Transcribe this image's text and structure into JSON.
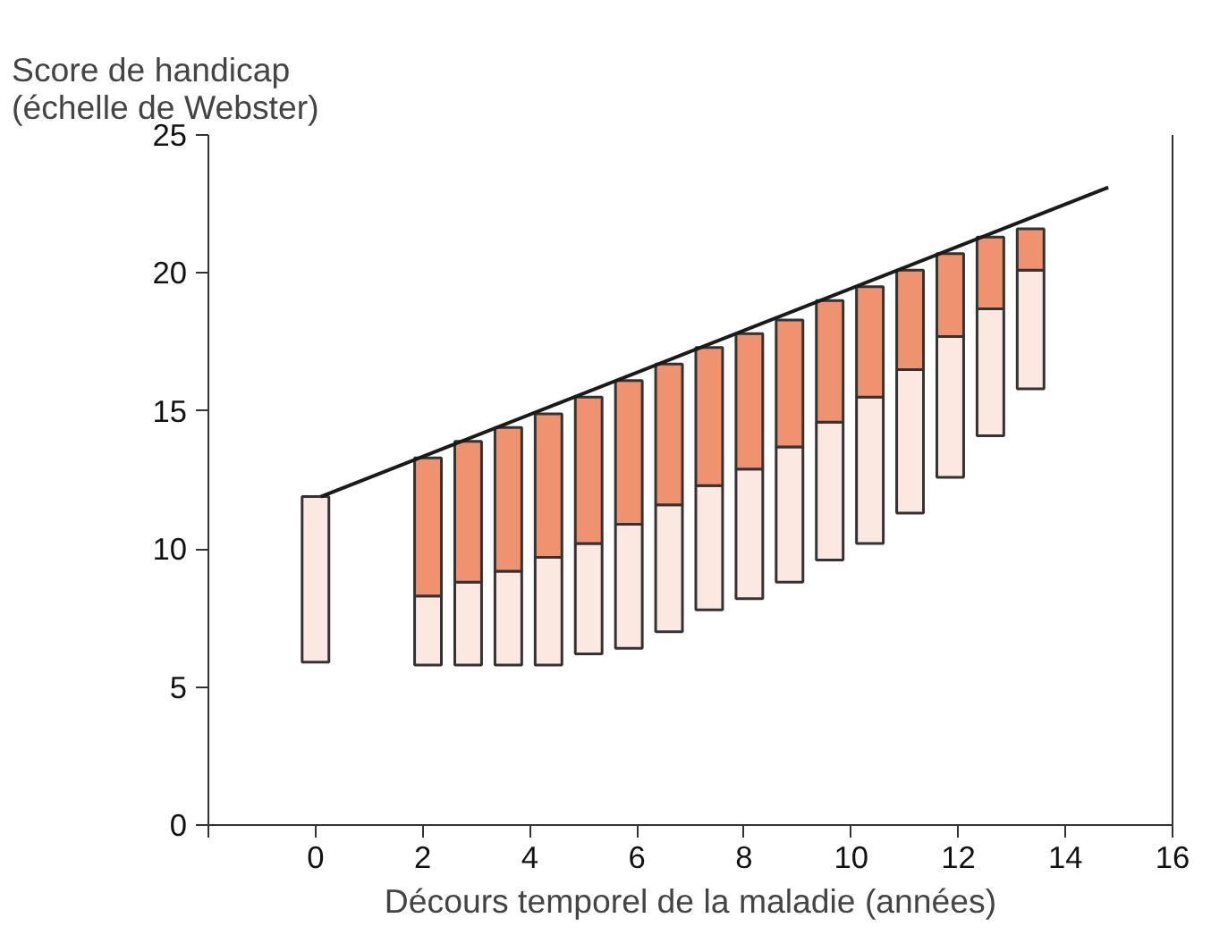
{
  "chart_data": {
    "type": "bar",
    "ylabel": "Score de handicap\n(échelle de Webster)",
    "xlabel": "Décours temporel de la maladie (années)",
    "x": [
      0,
      2.1,
      2.85,
      3.6,
      4.35,
      5.1,
      5.85,
      6.6,
      7.35,
      8.1,
      8.85,
      9.6,
      10.35,
      11.1,
      11.85,
      12.6,
      13.35
    ],
    "series": [
      {
        "color": "#fbe9e1",
        "base": [
          5.9,
          5.8,
          5.8,
          5.8,
          5.8,
          6.2,
          6.4,
          7.0,
          7.8,
          8.2,
          8.8,
          9.6,
          10.2,
          11.3,
          12.6,
          14.1,
          15.8
        ],
        "values": [
          6.0,
          2.5,
          3.0,
          3.4,
          3.9,
          4.0,
          4.5,
          4.6,
          4.5,
          4.7,
          4.9,
          5.0,
          5.3,
          5.2,
          5.1,
          4.6,
          4.3
        ]
      },
      {
        "color": "#ef9270",
        "base": [
          null,
          8.3,
          8.8,
          9.2,
          9.7,
          10.2,
          10.9,
          11.6,
          12.3,
          12.9,
          13.7,
          14.6,
          15.5,
          16.5,
          17.7,
          18.7,
          20.1
        ],
        "values": [
          null,
          5.0,
          5.1,
          5.2,
          5.2,
          5.3,
          5.2,
          5.1,
          5.0,
          4.9,
          4.6,
          4.4,
          4.0,
          3.6,
          3.0,
          2.6,
          1.5
        ]
      },
      {
        "type": "line",
        "color": "#1a1a1a",
        "x": [
          0.1,
          14.8
        ],
        "values": [
          11.9,
          23.1
        ]
      }
    ],
    "xlim": [
      -2,
      16
    ],
    "xticks": [
      {
        "value": -2,
        "label": null
      },
      0,
      2,
      4,
      6,
      8,
      10,
      12,
      14,
      16
    ],
    "ylim": [
      0,
      25
    ],
    "yticks": [
      0,
      5,
      10,
      15,
      20,
      25
    ],
    "grid": false
  }
}
